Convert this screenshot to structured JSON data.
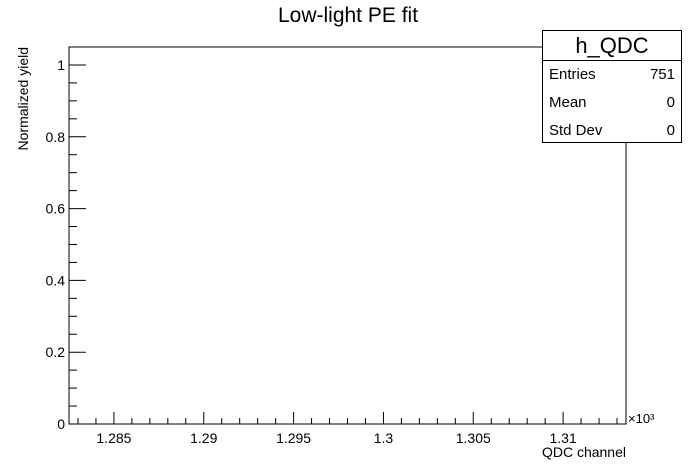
{
  "chart_data": {
    "type": "histogram",
    "title": "Low-light PE fit",
    "xlabel": "QDC channel",
    "ylabel": "Normalized yield",
    "xlim": [
      1282.5,
      1313.5
    ],
    "ylim": [
      0,
      1.05
    ],
    "x_ticks": [
      1285,
      1290,
      1295,
      1300,
      1305,
      1310
    ],
    "x_tick_labels": [
      "1.285",
      "1.29",
      "1.295",
      "1.3",
      "1.305",
      "1.31"
    ],
    "x_exponent_label": "×10³",
    "y_ticks": [
      0,
      0.2,
      0.4,
      0.6,
      0.8,
      1
    ],
    "y_tick_labels": [
      "0",
      "0.2",
      "0.4",
      "0.6",
      "0.8",
      "1"
    ],
    "series": [],
    "grid": false,
    "stats_box": {
      "name": "h_QDC",
      "rows": [
        {
          "label": "Entries",
          "value": "751"
        },
        {
          "label": "Mean",
          "value": "0"
        },
        {
          "label": "Std Dev",
          "value": "0"
        }
      ]
    }
  }
}
